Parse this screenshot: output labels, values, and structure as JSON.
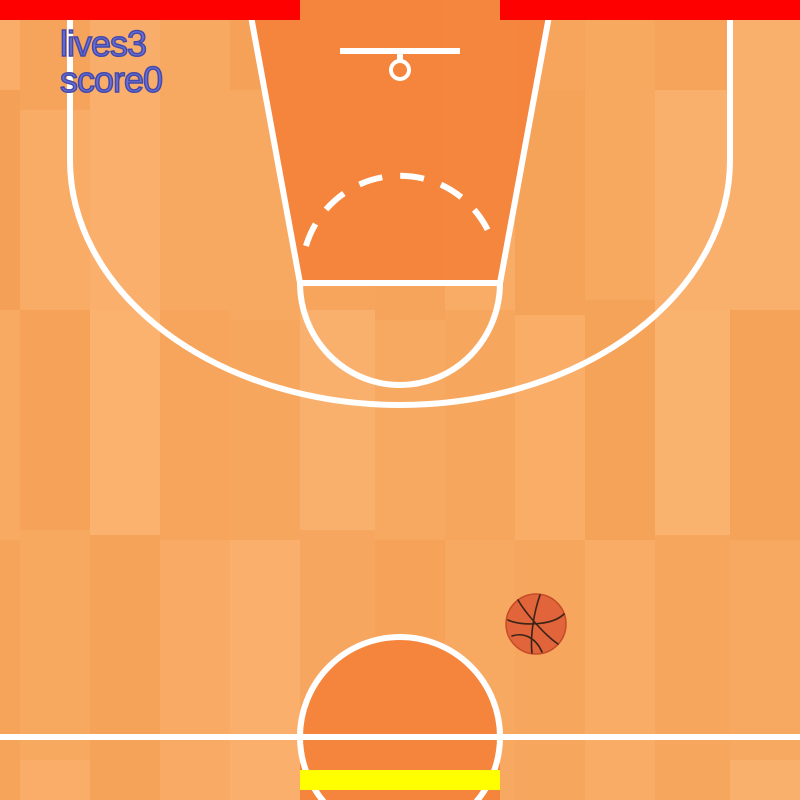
{
  "hud": {
    "lives_label": "lives",
    "lives_value": "3",
    "score_label": "score",
    "score_value": "0"
  },
  "colors": {
    "wall": "#ff0000",
    "paddle": "#ffff00",
    "court": "#f7a55c",
    "paint": "#f4823a",
    "lines": "#ffffff",
    "hud_text": "#6a6fd6",
    "ball": "#e1643a"
  },
  "icons": {
    "ball": "basketball-icon"
  }
}
